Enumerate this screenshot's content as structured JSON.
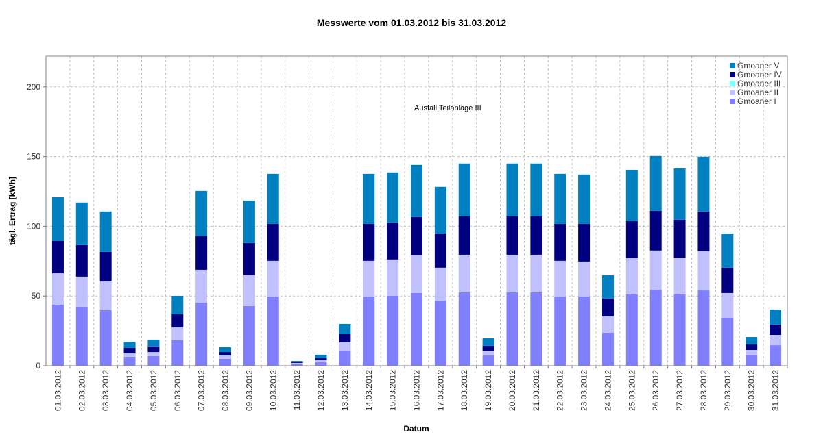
{
  "chart_data": {
    "type": "bar",
    "stacked": true,
    "title": "Messwerte vom 01.03.2012 bis 31.03.2012",
    "xlabel": "Datum",
    "ylabel": "tägl. Ertrag [kWh]",
    "ylim": [
      0,
      222
    ],
    "yticks": [
      0,
      50,
      100,
      150,
      200
    ],
    "grid": true,
    "legend": "top-right",
    "annotation": "Ausfall Teilanlage III",
    "categories": [
      "01.03.2012",
      "02.03.2012",
      "03.03.2012",
      "04.03.2012",
      "05.03.2012",
      "06.03.2012",
      "07.03.2012",
      "08.03.2012",
      "09.03.2012",
      "10.03.2012",
      "11.03.2012",
      "12.03.2012",
      "13.03.2012",
      "14.03.2012",
      "15.03.2012",
      "16.03.2012",
      "17.03.2012",
      "18.03.2012",
      "19.03.2012",
      "20.03.2012",
      "21.03.2012",
      "22.03.2012",
      "23.03.2012",
      "24.03.2012",
      "25.03.2012",
      "26.03.2012",
      "27.03.2012",
      "28.03.2012",
      "29.03.2012",
      "30.03.2012",
      "31.03.2012"
    ],
    "series": [
      {
        "name": "Gmoaner I",
        "color": "#8080ff",
        "values": [
          43.7,
          42.3,
          39.8,
          6.4,
          6.9,
          18.2,
          45.2,
          4.9,
          42.8,
          49.6,
          1.0,
          2.5,
          10.8,
          49.6,
          50.1,
          52.1,
          46.7,
          52.6,
          7.4,
          52.6,
          52.6,
          49.6,
          49.6,
          23.6,
          51.1,
          54.5,
          51.1,
          54.0,
          34.4,
          7.9,
          14.7
        ]
      },
      {
        "name": "Gmoaner II",
        "color": "#c0c0ff",
        "values": [
          22.6,
          21.6,
          20.6,
          2.4,
          2.9,
          9.3,
          23.6,
          2.5,
          22.1,
          25.6,
          1.0,
          1.4,
          5.9,
          25.6,
          26.1,
          27.0,
          23.6,
          27.0,
          3.4,
          27.0,
          27.0,
          25.6,
          25.1,
          11.8,
          26.0,
          28.1,
          26.5,
          28.1,
          17.7,
          3.4,
          7.4
        ]
      },
      {
        "name": "Gmoaner III",
        "color": "#80ffff",
        "values": [
          0,
          0,
          0,
          0,
          0,
          0,
          0,
          0,
          0,
          0,
          0,
          0,
          0,
          0,
          0,
          0,
          0,
          0,
          0,
          0,
          0,
          0,
          0,
          0,
          0,
          0,
          0,
          0,
          0,
          0,
          0
        ]
      },
      {
        "name": "Gmoaner IV",
        "color": "#000080",
        "values": [
          23.1,
          22.6,
          21.2,
          4.0,
          4.0,
          9.4,
          24.1,
          2.4,
          23.1,
          26.5,
          0.8,
          1.5,
          5.9,
          26.5,
          26.5,
          27.5,
          24.5,
          27.5,
          3.5,
          27.5,
          27.5,
          26.5,
          27.0,
          12.8,
          26.6,
          28.5,
          27.1,
          28.5,
          18.2,
          3.9,
          7.4
        ]
      },
      {
        "name": "Gmoaner V",
        "color": "#0080c0",
        "values": [
          31.5,
          30.5,
          29.0,
          4.4,
          4.9,
          13.2,
          32.4,
          3.5,
          30.4,
          35.9,
          0.6,
          2.5,
          7.4,
          35.9,
          35.9,
          37.4,
          33.5,
          37.9,
          5.4,
          37.9,
          37.9,
          35.9,
          35.4,
          16.7,
          36.8,
          39.3,
          36.8,
          39.3,
          24.5,
          5.4,
          10.8
        ]
      }
    ]
  }
}
